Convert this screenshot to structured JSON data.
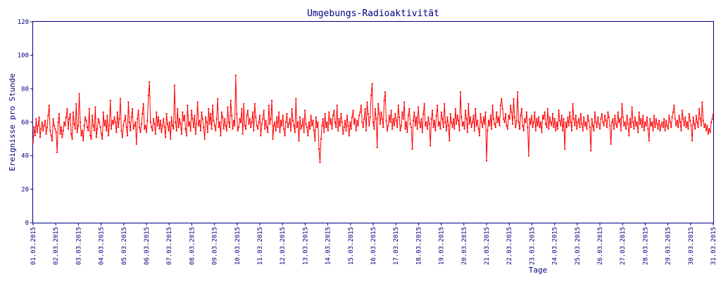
{
  "chart_data": {
    "type": "line",
    "title": "Umgebungs-Radioaktivität",
    "xlabel": "Tage",
    "ylabel": "Ereignisse pro Stunde",
    "ylim": [
      0,
      120
    ],
    "yticks": [
      0,
      20,
      40,
      60,
      80,
      100,
      120
    ],
    "xlim": [
      "01.03.2015",
      "31.03.2015"
    ],
    "xticks": [
      "01.03.2015",
      "02.03.2015",
      "03.03.2015",
      "04.03.2015",
      "05.03.2015",
      "06.03.2015",
      "07.03.2015",
      "08.03.2015",
      "09.03.2015",
      "10.03.2015",
      "11.03.2015",
      "12.03.2015",
      "13.03.2015",
      "14.03.2015",
      "15.03.2015",
      "16.03.2015",
      "17.03.2015",
      "18.03.2015",
      "19.03.2015",
      "20.03.2015",
      "21.03.2015",
      "22.03.2015",
      "23.03.2015",
      "24.03.2015",
      "25.03.2015",
      "26.03.2015",
      "27.03.2015",
      "28.03.2015",
      "29.03.2015",
      "30.03.2015",
      "31.03.2015"
    ],
    "grid": false,
    "line_color": "#ff0000",
    "axis_color": "#000080",
    "sampling": "hourly",
    "series": [
      {
        "values": [
          48,
          57,
          52,
          62,
          54,
          58,
          63,
          51,
          56,
          60,
          55,
          58,
          61,
          53,
          57,
          64,
          70,
          55,
          52,
          49,
          62,
          58,
          56,
          54,
          42,
          60,
          65,
          53,
          57,
          51,
          55,
          60,
          58,
          63,
          68,
          56,
          62,
          65,
          53,
          50,
          66,
          59,
          56,
          71,
          54,
          58,
          77,
          60,
          52,
          55,
          49,
          58,
          63,
          61,
          57,
          55,
          68,
          52,
          50,
          64,
          58,
          55,
          69,
          51,
          56,
          62,
          60,
          57,
          53,
          50,
          66,
          58,
          61,
          55,
          64,
          52,
          58,
          73,
          56,
          61,
          59,
          63,
          60,
          54,
          66,
          57,
          62,
          74,
          55,
          51,
          58,
          61,
          64,
          57,
          52,
          72,
          60,
          55,
          63,
          68,
          56,
          58,
          60,
          47,
          62,
          67,
          57,
          54,
          59,
          65,
          71,
          56,
          58,
          54,
          61,
          76,
          84,
          60,
          57,
          55,
          62,
          59,
          53,
          66,
          58,
          63,
          56,
          61,
          54,
          58,
          62,
          57,
          51,
          65,
          59,
          55,
          60,
          50,
          63,
          58,
          56,
          82,
          60,
          55,
          68,
          57,
          62,
          59,
          53,
          66,
          61,
          64,
          56,
          52,
          70,
          58,
          60,
          55,
          67,
          62,
          57,
          64,
          53,
          59,
          72,
          58,
          61,
          55,
          66,
          62,
          57,
          50,
          63,
          60,
          54,
          68,
          59,
          65,
          56,
          70,
          61,
          58,
          55,
          62,
          74,
          57,
          60,
          52,
          66,
          63,
          56,
          62,
          58,
          55,
          69,
          60,
          57,
          73,
          64,
          56,
          61,
          58,
          88,
          65,
          55,
          57,
          62,
          60,
          68,
          53,
          71,
          58,
          56,
          64,
          67,
          59,
          62,
          57,
          60,
          66,
          55,
          71,
          63,
          58,
          56,
          60,
          64,
          52,
          59,
          62,
          67,
          56,
          61,
          57,
          54,
          70,
          59,
          62,
          73,
          50,
          58,
          60,
          55,
          63,
          57,
          66,
          54,
          61,
          58,
          64,
          56,
          52,
          60,
          65,
          57,
          59,
          62,
          55,
          68,
          61,
          58,
          54,
          74,
          57,
          60,
          49,
          63,
          56,
          58,
          62,
          54,
          67,
          59,
          57,
          52,
          60,
          56,
          64,
          58,
          61,
          55,
          49,
          63,
          57,
          60,
          44,
          36,
          50,
          58,
          62,
          54,
          65,
          57,
          60,
          55,
          66,
          59,
          62,
          56,
          64,
          67,
          60,
          57,
          70,
          55,
          62,
          58,
          65,
          60,
          53,
          57,
          61,
          55,
          64,
          58,
          52,
          60,
          56,
          63,
          67,
          59,
          62,
          55,
          61,
          58,
          64,
          66,
          70,
          60,
          57,
          62,
          68,
          55,
          72,
          65,
          58,
          63,
          76,
          83,
          60,
          56,
          68,
          62,
          45,
          71,
          65,
          59,
          66,
          62,
          57,
          73,
          78,
          61,
          55,
          58,
          64,
          60,
          67,
          56,
          62,
          58,
          65,
          61,
          57,
          70,
          63,
          55,
          58,
          66,
          62,
          72,
          56,
          60,
          54,
          64,
          68,
          59,
          57,
          44,
          61,
          66,
          58,
          63,
          56,
          69,
          60,
          57,
          62,
          54,
          65,
          71,
          58,
          60,
          56,
          63,
          59,
          46,
          62,
          67,
          57,
          61,
          55,
          64,
          70,
          58,
          60,
          56,
          66,
          62,
          57,
          71,
          60,
          55,
          63,
          58,
          49,
          65,
          60,
          57,
          62,
          56,
          68,
          59,
          64,
          61,
          55,
          78,
          63,
          58,
          60,
          56,
          67,
          62,
          54,
          71,
          59,
          63,
          57,
          60,
          64,
          55,
          68,
          58,
          61,
          56,
          52,
          65,
          60,
          57,
          63,
          59,
          66,
          37,
          55,
          61,
          58,
          64,
          56,
          70,
          62,
          59,
          57,
          66,
          60,
          63,
          58,
          70,
          74,
          68,
          62,
          60,
          65,
          58,
          56,
          64,
          62,
          70,
          66,
          59,
          74,
          63,
          57,
          61,
          78,
          60,
          56,
          64,
          68,
          58,
          55,
          62,
          60,
          66,
          57,
          40,
          62,
          59,
          64,
          57,
          60,
          66,
          55,
          62,
          58,
          63,
          57,
          60,
          54,
          64,
          62,
          66,
          59,
          57,
          68,
          56,
          63,
          60,
          58,
          65,
          57,
          62,
          55,
          60,
          56,
          67,
          61,
          58,
          64,
          55,
          62,
          44,
          60,
          57,
          63,
          58,
          66,
          60,
          55,
          71,
          62,
          58,
          64,
          56,
          60,
          62,
          57,
          65,
          59,
          55,
          63,
          58,
          60,
          56,
          64,
          61,
          57,
          43,
          62,
          58,
          55,
          66,
          60,
          57,
          63,
          59,
          56,
          62,
          65,
          60,
          58,
          64,
          61,
          57,
          66,
          63,
          58,
          47,
          60,
          62,
          56,
          64,
          59,
          57,
          66,
          60,
          62,
          55,
          71,
          63,
          58,
          60,
          56,
          64,
          59,
          52,
          62,
          57,
          69,
          60,
          56,
          63,
          58,
          60,
          54,
          66,
          59,
          62,
          57,
          64,
          55,
          60,
          58,
          63,
          56,
          49,
          62,
          58,
          60,
          55,
          64,
          57,
          62,
          59,
          56,
          61,
          55,
          58,
          60,
          57,
          62,
          55,
          61,
          58,
          56,
          64,
          60,
          57,
          63,
          66,
          70,
          62,
          58,
          61,
          57,
          64,
          60,
          55,
          67,
          62,
          58,
          63,
          57,
          60,
          56,
          65,
          61,
          58,
          49,
          63,
          59,
          56,
          64,
          60,
          57,
          68,
          62,
          58,
          72,
          61,
          57,
          59,
          55,
          58,
          53,
          56,
          54,
          60,
          62,
          65
        ]
      }
    ]
  }
}
